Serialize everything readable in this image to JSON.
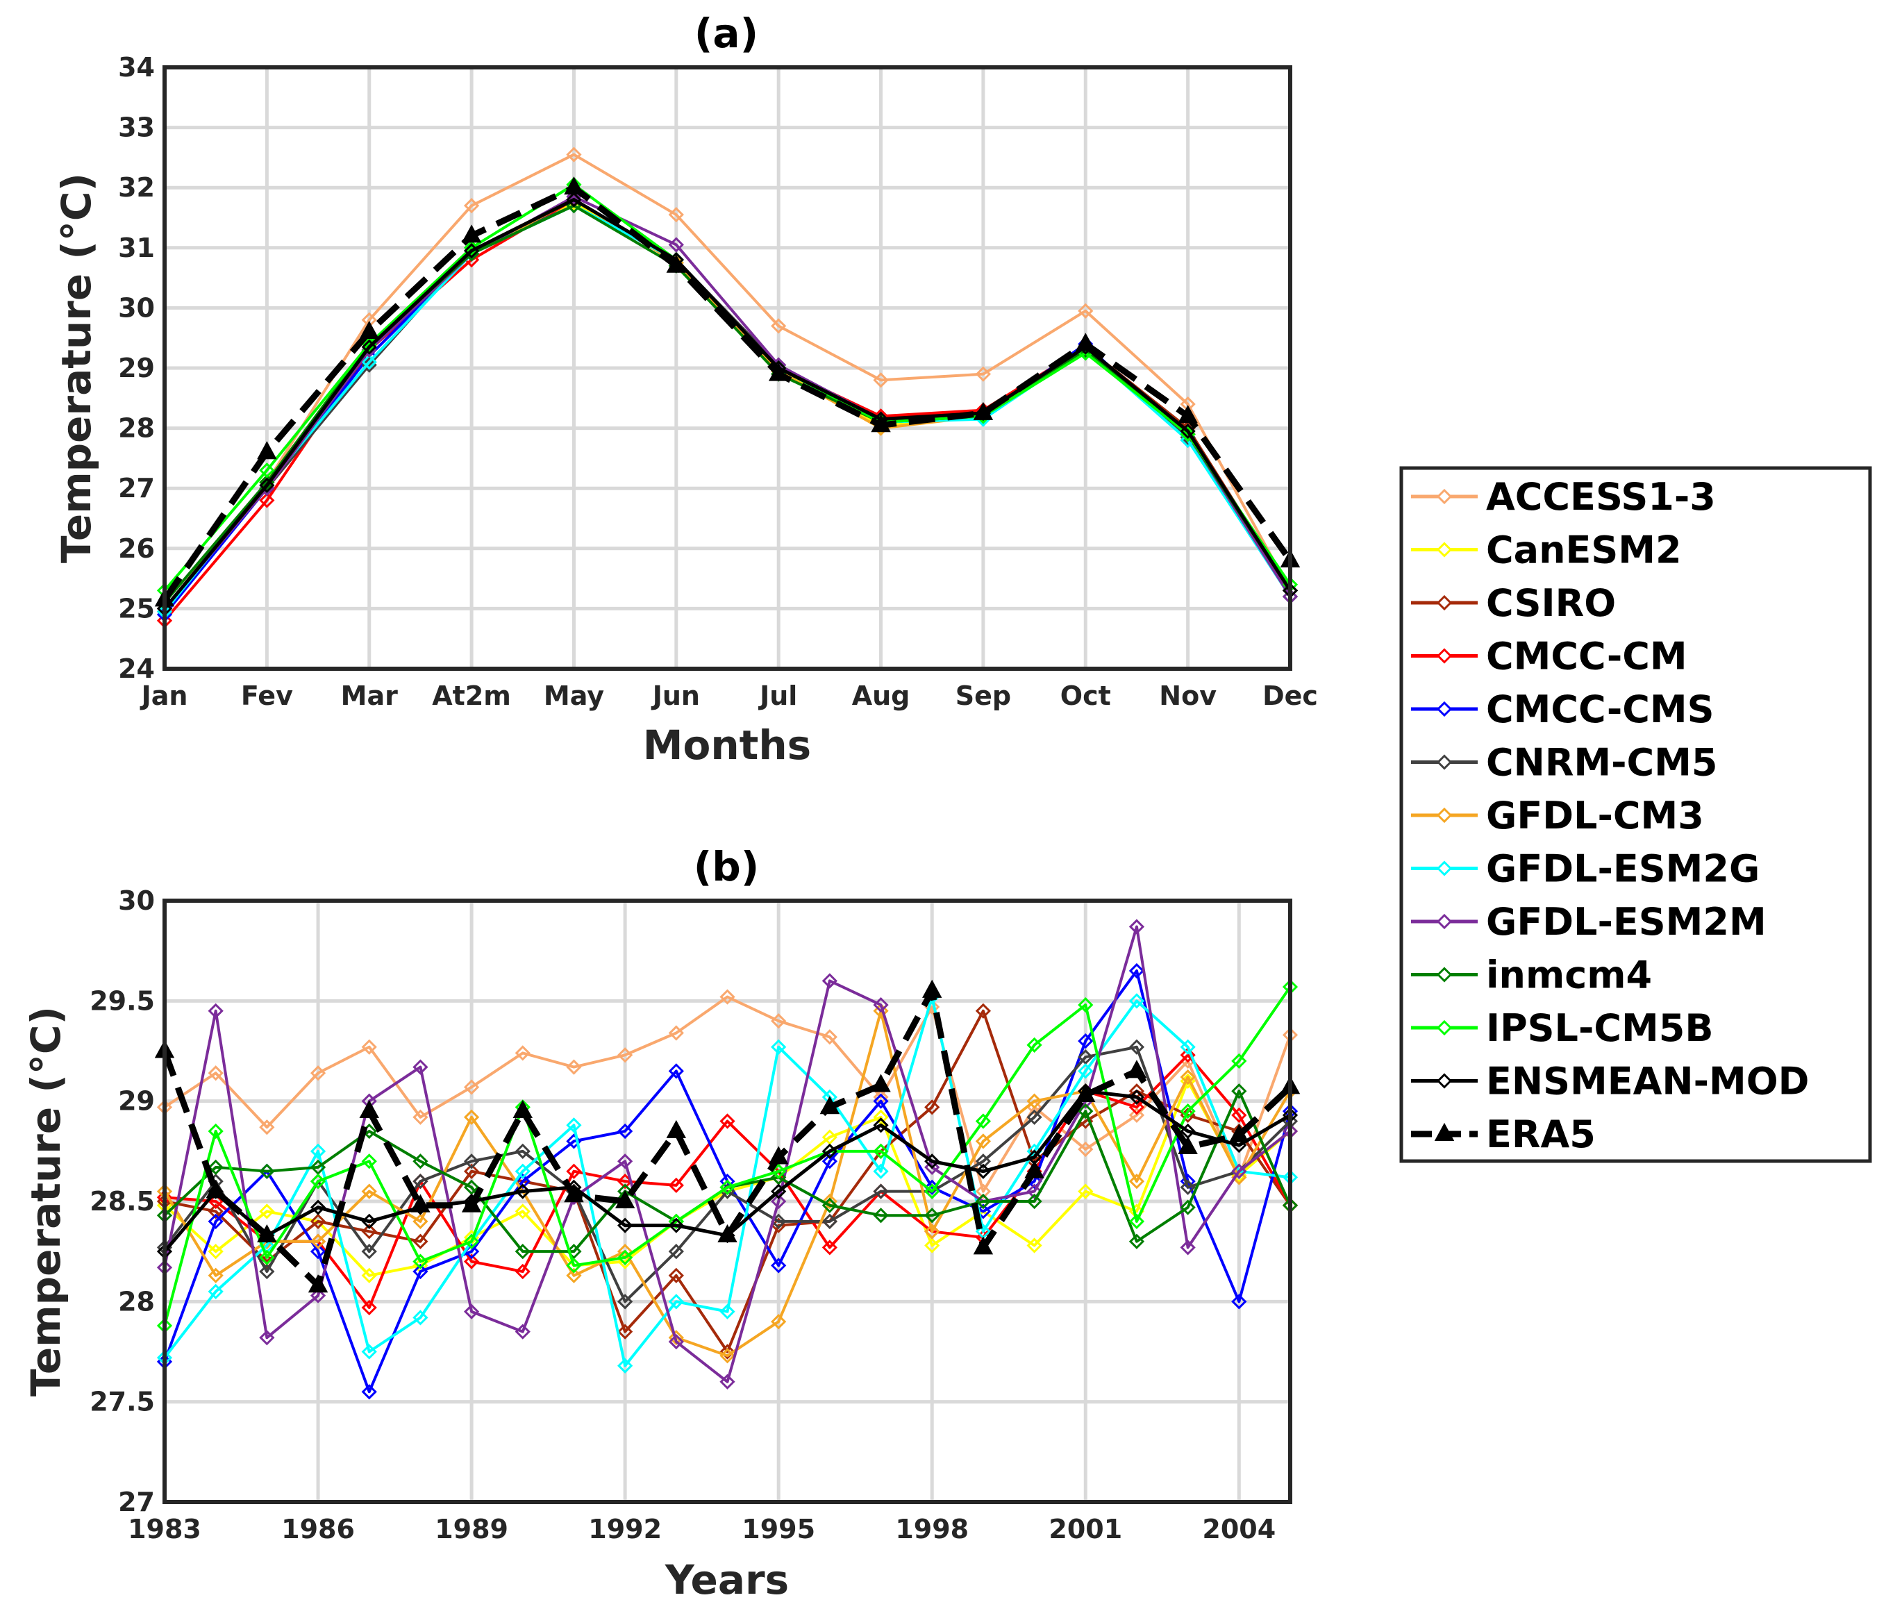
{
  "colors": {
    "ACCESS1-3": "#f9a86e",
    "CanESM2": "#ffff00",
    "CSIRO": "#a52a0a",
    "CMCC-CM": "#ff0000",
    "CMCC-CMS": "#0000ff",
    "CNRM-CM5": "#404040",
    "GFDL-CM3": "#f5a623",
    "GFDL-ESM2G": "#00ffff",
    "GFDL-ESM2M": "#7b2c9a",
    "inmcm4": "#007f00",
    "IPSL-CM5B": "#00ff00",
    "ENSMEAN-MOD": "#000000",
    "ERA5": "#000000"
  },
  "legend": {
    "entries": [
      "ACCESS1-3",
      "CanESM2",
      "CSIRO",
      "CMCC-CM",
      "CMCC-CMS",
      "CNRM-CM5",
      "GFDL-CM3",
      "GFDL-ESM2G",
      "GFDL-ESM2M",
      "inmcm4",
      "IPSL-CM5B",
      "ENSMEAN-MOD",
      "ERA5"
    ]
  },
  "chart_data": [
    {
      "type": "line",
      "title": "(a)",
      "xlabel": "Months",
      "ylabel": "Temperature (°C)",
      "ylim": [
        24,
        34
      ],
      "yticks": [
        24,
        25,
        26,
        27,
        28,
        29,
        30,
        31,
        32,
        33,
        34
      ],
      "grid": true,
      "categories": [
        "Jan",
        "Fev",
        "Mar",
        "At2m",
        "May",
        "Jun",
        "Jul",
        "Aug",
        "Sep",
        "Oct",
        "Nov",
        "Dec"
      ],
      "series": [
        {
          "name": "ACCESS1-3",
          "values": [
            25.0,
            27.1,
            29.8,
            31.7,
            32.55,
            31.55,
            29.7,
            28.8,
            28.9,
            29.95,
            28.4,
            25.3
          ]
        },
        {
          "name": "CanESM2",
          "values": [
            25.0,
            27.0,
            29.4,
            30.9,
            31.75,
            30.8,
            28.95,
            28.05,
            28.2,
            29.3,
            27.9,
            25.2
          ]
        },
        {
          "name": "CSIRO",
          "values": [
            24.95,
            27.0,
            29.3,
            30.9,
            31.8,
            30.8,
            29.0,
            28.15,
            28.3,
            29.35,
            28.0,
            25.3
          ]
        },
        {
          "name": "CMCC-CM",
          "values": [
            24.8,
            26.8,
            29.3,
            30.8,
            31.8,
            30.8,
            29.0,
            28.2,
            28.3,
            29.35,
            27.9,
            25.3
          ]
        },
        {
          "name": "CMCC-CMS",
          "values": [
            24.9,
            27.0,
            29.2,
            30.9,
            31.8,
            30.8,
            29.0,
            28.1,
            28.2,
            29.4,
            27.8,
            25.3
          ]
        },
        {
          "name": "CNRM-CM5",
          "values": [
            25.0,
            27.0,
            29.05,
            30.95,
            31.7,
            30.8,
            29.05,
            28.1,
            28.25,
            29.35,
            27.85,
            25.2
          ]
        },
        {
          "name": "GFDL-CM3",
          "values": [
            25.0,
            27.1,
            29.4,
            30.9,
            31.8,
            30.75,
            28.95,
            28.0,
            28.2,
            29.3,
            27.9,
            25.2
          ]
        },
        {
          "name": "GFDL-ESM2G",
          "values": [
            24.95,
            27.05,
            29.1,
            30.9,
            31.7,
            30.8,
            29.0,
            28.1,
            28.15,
            29.3,
            27.8,
            25.2
          ]
        },
        {
          "name": "GFDL-ESM2M",
          "values": [
            25.0,
            27.0,
            29.3,
            30.9,
            31.85,
            31.05,
            29.05,
            28.15,
            28.25,
            29.35,
            27.9,
            25.2
          ]
        },
        {
          "name": "inmcm4",
          "values": [
            25.1,
            27.1,
            29.4,
            30.9,
            31.7,
            30.7,
            28.9,
            28.1,
            28.2,
            29.3,
            27.9,
            25.3
          ]
        },
        {
          "name": "IPSL-CM5B",
          "values": [
            25.3,
            27.3,
            29.4,
            31.0,
            32.05,
            30.8,
            29.0,
            28.1,
            28.2,
            29.25,
            27.9,
            25.4
          ]
        },
        {
          "name": "ENSMEAN-MOD",
          "values": [
            25.0,
            27.05,
            29.35,
            30.95,
            31.8,
            30.8,
            29.0,
            28.15,
            28.25,
            29.35,
            27.95,
            25.3
          ]
        },
        {
          "name": "ERA5",
          "values": [
            25.15,
            27.6,
            29.6,
            31.2,
            32.0,
            30.7,
            28.9,
            28.05,
            28.25,
            29.4,
            28.2,
            25.8
          ]
        }
      ]
    },
    {
      "type": "line",
      "title": "(b)",
      "xlabel": "Years",
      "ylabel": "Temperature (°C)",
      "ylim": [
        27,
        30
      ],
      "yticks": [
        27,
        27.5,
        28,
        28.5,
        29,
        29.5,
        30
      ],
      "grid": true,
      "x": [
        1983,
        1984,
        1985,
        1986,
        1987,
        1988,
        1989,
        1990,
        1991,
        1992,
        1993,
        1994,
        1995,
        1996,
        1997,
        1998,
        1999,
        2000,
        2001,
        2002,
        2003,
        2004,
        2005
      ],
      "xlim": [
        1983,
        2005
      ],
      "xticks": [
        1983,
        1986,
        1989,
        1992,
        1995,
        1998,
        2001,
        2004
      ],
      "series": [
        {
          "name": "ACCESS1-3",
          "values": [
            28.97,
            29.14,
            28.87,
            29.14,
            29.27,
            28.92,
            29.07,
            29.24,
            29.17,
            29.23,
            29.34,
            29.52,
            29.4,
            29.32,
            29.02,
            29.47,
            28.55,
            28.97,
            28.76,
            28.93,
            29.2,
            28.62,
            29.33
          ]
        },
        {
          "name": "CanESM2",
          "values": [
            28.48,
            28.25,
            28.45,
            28.4,
            28.13,
            28.18,
            28.32,
            28.45,
            28.18,
            28.2,
            28.4,
            28.55,
            28.62,
            28.82,
            28.92,
            28.28,
            28.45,
            28.28,
            28.55,
            28.45,
            29.1,
            28.63,
            28.85
          ]
        },
        {
          "name": "CSIRO",
          "values": [
            28.5,
            28.45,
            28.2,
            28.4,
            28.35,
            28.3,
            28.65,
            28.6,
            28.55,
            27.85,
            28.13,
            27.75,
            28.38,
            28.4,
            28.75,
            28.97,
            29.45,
            28.7,
            28.9,
            29.05,
            28.93,
            28.85,
            28.48
          ]
        },
        {
          "name": "CMCC-CM",
          "values": [
            28.52,
            28.5,
            28.3,
            28.3,
            27.97,
            28.6,
            28.2,
            28.15,
            28.65,
            28.6,
            28.58,
            28.9,
            28.65,
            28.27,
            28.55,
            28.35,
            28.32,
            28.65,
            29.05,
            28.97,
            29.23,
            28.93,
            28.48
          ]
        },
        {
          "name": "CMCC-CMS",
          "values": [
            27.7,
            28.4,
            28.65,
            28.25,
            27.55,
            28.15,
            28.25,
            28.6,
            28.8,
            28.85,
            29.15,
            28.6,
            28.18,
            28.7,
            29.0,
            28.57,
            28.45,
            28.6,
            29.3,
            29.65,
            28.6,
            28.0,
            28.95
          ]
        },
        {
          "name": "CNRM-CM5",
          "values": [
            28.27,
            28.6,
            28.15,
            28.6,
            28.25,
            28.6,
            28.7,
            28.75,
            28.55,
            28.0,
            28.25,
            28.55,
            28.4,
            28.4,
            28.55,
            28.55,
            28.7,
            28.92,
            29.22,
            29.27,
            28.57,
            28.65,
            28.9
          ]
        },
        {
          "name": "GFDL-CM3",
          "values": [
            28.55,
            28.13,
            28.3,
            28.3,
            28.55,
            28.4,
            28.92,
            28.55,
            28.13,
            28.25,
            27.82,
            27.73,
            27.9,
            28.5,
            29.45,
            28.35,
            28.8,
            29.0,
            29.05,
            28.6,
            29.12,
            28.62,
            29.05
          ]
        },
        {
          "name": "GFDL-ESM2G",
          "values": [
            27.72,
            28.05,
            28.28,
            28.75,
            27.75,
            27.92,
            28.3,
            28.65,
            28.88,
            27.68,
            28.0,
            27.95,
            29.27,
            29.02,
            28.65,
            29.52,
            28.35,
            28.75,
            29.15,
            29.5,
            29.27,
            28.65,
            28.62
          ]
        },
        {
          "name": "GFDL-ESM2M",
          "values": [
            28.17,
            29.45,
            27.82,
            28.03,
            29.0,
            29.17,
            27.95,
            27.85,
            28.52,
            28.7,
            27.8,
            27.6,
            28.5,
            29.6,
            29.48,
            28.67,
            28.5,
            28.55,
            29.0,
            29.87,
            28.27,
            28.65,
            28.85
          ]
        },
        {
          "name": "inmcm4",
          "values": [
            28.43,
            28.67,
            28.65,
            28.67,
            28.85,
            28.7,
            28.57,
            28.25,
            28.25,
            28.55,
            28.4,
            28.57,
            28.62,
            28.48,
            28.43,
            28.43,
            28.5,
            28.5,
            28.95,
            28.3,
            28.47,
            29.05,
            28.48
          ]
        },
        {
          "name": "IPSL-CM5B",
          "values": [
            27.88,
            28.85,
            28.22,
            28.6,
            28.7,
            28.2,
            28.3,
            28.97,
            28.18,
            28.22,
            28.4,
            28.57,
            28.65,
            28.75,
            28.75,
            28.55,
            28.9,
            29.28,
            29.48,
            28.4,
            28.95,
            29.2,
            29.57
          ]
        },
        {
          "name": "ENSMEAN-MOD",
          "values": [
            28.25,
            28.55,
            28.33,
            28.47,
            28.4,
            28.47,
            28.5,
            28.55,
            28.57,
            28.38,
            28.38,
            28.33,
            28.55,
            28.75,
            28.88,
            28.7,
            28.65,
            28.72,
            29.05,
            29.02,
            28.85,
            28.78,
            28.93
          ]
        },
        {
          "name": "ERA5",
          "values": [
            29.25,
            28.55,
            28.33,
            28.08,
            28.95,
            28.48,
            28.48,
            28.95,
            28.53,
            28.5,
            28.85,
            28.33,
            28.72,
            28.97,
            29.08,
            29.55,
            28.27,
            28.65,
            29.03,
            29.15,
            28.77,
            28.83,
            29.07
          ]
        }
      ]
    }
  ]
}
